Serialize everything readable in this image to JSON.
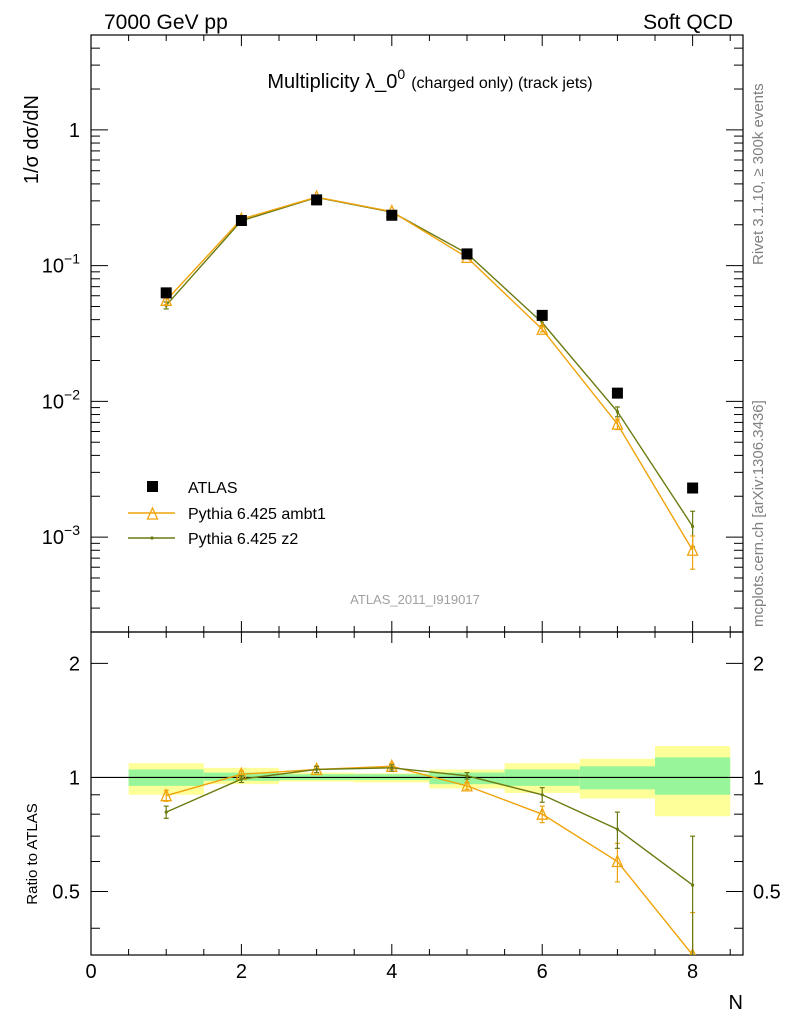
{
  "header": {
    "left": "7000 GeV pp",
    "right": "Soft QCD"
  },
  "side_labels": {
    "top": "Rivet 3.1.10, ≥ 300k events",
    "bottom": "mcplots.cern.ch [arXiv:1306.3436]"
  },
  "chart_data": [
    {
      "type": "scatter",
      "title_main": "Multiplicity λ_0",
      "title_sup": "0",
      "title_sub": "(charged only) (track jets)",
      "ylabel": "1/σ dσ/dN",
      "yscale": "log",
      "ylim": [
        0.0002,
        5
      ],
      "xlim": [
        0,
        8.67
      ],
      "ytick_labels": [
        {
          "value": 1,
          "base": "1",
          "exp": ""
        },
        {
          "value": 0.1,
          "base": "10",
          "exp": "−1"
        },
        {
          "value": 0.01,
          "base": "10",
          "exp": "−2"
        },
        {
          "value": 0.001,
          "base": "10",
          "exp": "−3"
        }
      ],
      "watermark": "ATLAS_2011_I919017",
      "legend": {
        "placement": "bottom-left"
      },
      "series": [
        {
          "name": "ATLAS",
          "style": "data",
          "color": "#000000",
          "x": [
            1,
            2,
            3,
            4,
            5,
            6,
            7,
            8
          ],
          "y": [
            0.063,
            0.215,
            0.305,
            0.235,
            0.122,
            0.043,
            0.0115,
            0.0023
          ]
        },
        {
          "name": "Pythia 6.425 ambt1",
          "style": "triangle",
          "color": "#f0a30a",
          "x": [
            1,
            2,
            3,
            4,
            5,
            6,
            7,
            8
          ],
          "y": [
            0.0555,
            0.22,
            0.32,
            0.25,
            0.115,
            0.034,
            0.0068,
            0.0008
          ],
          "err": [
            0.004,
            0.006,
            0.007,
            0.006,
            0.003,
            0.0015,
            0.0006,
            0.00022
          ]
        },
        {
          "name": "Pythia 6.425 z2",
          "style": "line",
          "color": "#6b7a10",
          "x": [
            1,
            2,
            3,
            4,
            5,
            6,
            7,
            8
          ],
          "y": [
            0.051,
            0.214,
            0.318,
            0.248,
            0.123,
            0.038,
            0.0084,
            0.0012
          ],
          "err": [
            0.003,
            0.006,
            0.007,
            0.006,
            0.003,
            0.0018,
            0.0007,
            0.00035
          ]
        }
      ]
    },
    {
      "type": "scatter",
      "ylabel": "Ratio to ATLAS",
      "xlabel": "N",
      "ylim": [
        0.34,
        2.42
      ],
      "xlim": [
        0,
        8.67
      ],
      "x_tick_labels": [
        "0",
        "2",
        "4",
        "6",
        "8"
      ],
      "y_tick_labels": [
        "0.5",
        "1",
        "2"
      ],
      "bands": [
        {
          "x0": 0.5,
          "x1": 1.5,
          "stat": [
            0.95,
            1.05
          ],
          "tot": [
            0.9,
            1.09
          ]
        },
        {
          "x0": 1.5,
          "x1": 2.5,
          "stat": [
            0.98,
            1.03
          ],
          "tot": [
            0.96,
            1.06
          ]
        },
        {
          "x0": 2.5,
          "x1": 3.5,
          "stat": [
            0.985,
            1.02
          ],
          "tot": [
            0.975,
            1.03
          ]
        },
        {
          "x0": 3.5,
          "x1": 4.5,
          "stat": [
            0.985,
            1.02
          ],
          "tot": [
            0.97,
            1.025
          ]
        },
        {
          "x0": 4.5,
          "x1": 5.5,
          "stat": [
            0.96,
            1.03
          ],
          "tot": [
            0.935,
            1.05
          ]
        },
        {
          "x0": 5.5,
          "x1": 6.5,
          "stat": [
            0.95,
            1.05
          ],
          "tot": [
            0.91,
            1.09
          ]
        },
        {
          "x0": 6.5,
          "x1": 7.5,
          "stat": [
            0.93,
            1.07
          ],
          "tot": [
            0.88,
            1.12
          ]
        },
        {
          "x0": 7.5,
          "x1": 8.5,
          "stat": [
            0.9,
            1.13
          ],
          "tot": [
            0.79,
            1.21
          ]
        }
      ],
      "series": [
        {
          "name": "Pythia 6.425 ambt1",
          "style": "triangle",
          "color": "#f0a30a",
          "x": [
            1,
            2,
            3,
            4,
            5,
            6,
            7,
            8
          ],
          "y": [
            0.895,
            1.02,
            1.05,
            1.07,
            0.95,
            0.8,
            0.6,
            0.34
          ],
          "err": [
            0.03,
            0.02,
            0.02,
            0.02,
            0.02,
            0.04,
            0.07,
            0.1
          ]
        },
        {
          "name": "Pythia 6.425 z2",
          "style": "line",
          "color": "#6b7a10",
          "x": [
            1,
            2,
            3,
            4,
            5,
            6,
            7,
            8
          ],
          "y": [
            0.81,
            0.99,
            1.05,
            1.06,
            1.01,
            0.9,
            0.73,
            0.52
          ],
          "err": [
            0.03,
            0.02,
            0.02,
            0.02,
            0.02,
            0.04,
            0.08,
            0.18
          ]
        }
      ]
    }
  ]
}
